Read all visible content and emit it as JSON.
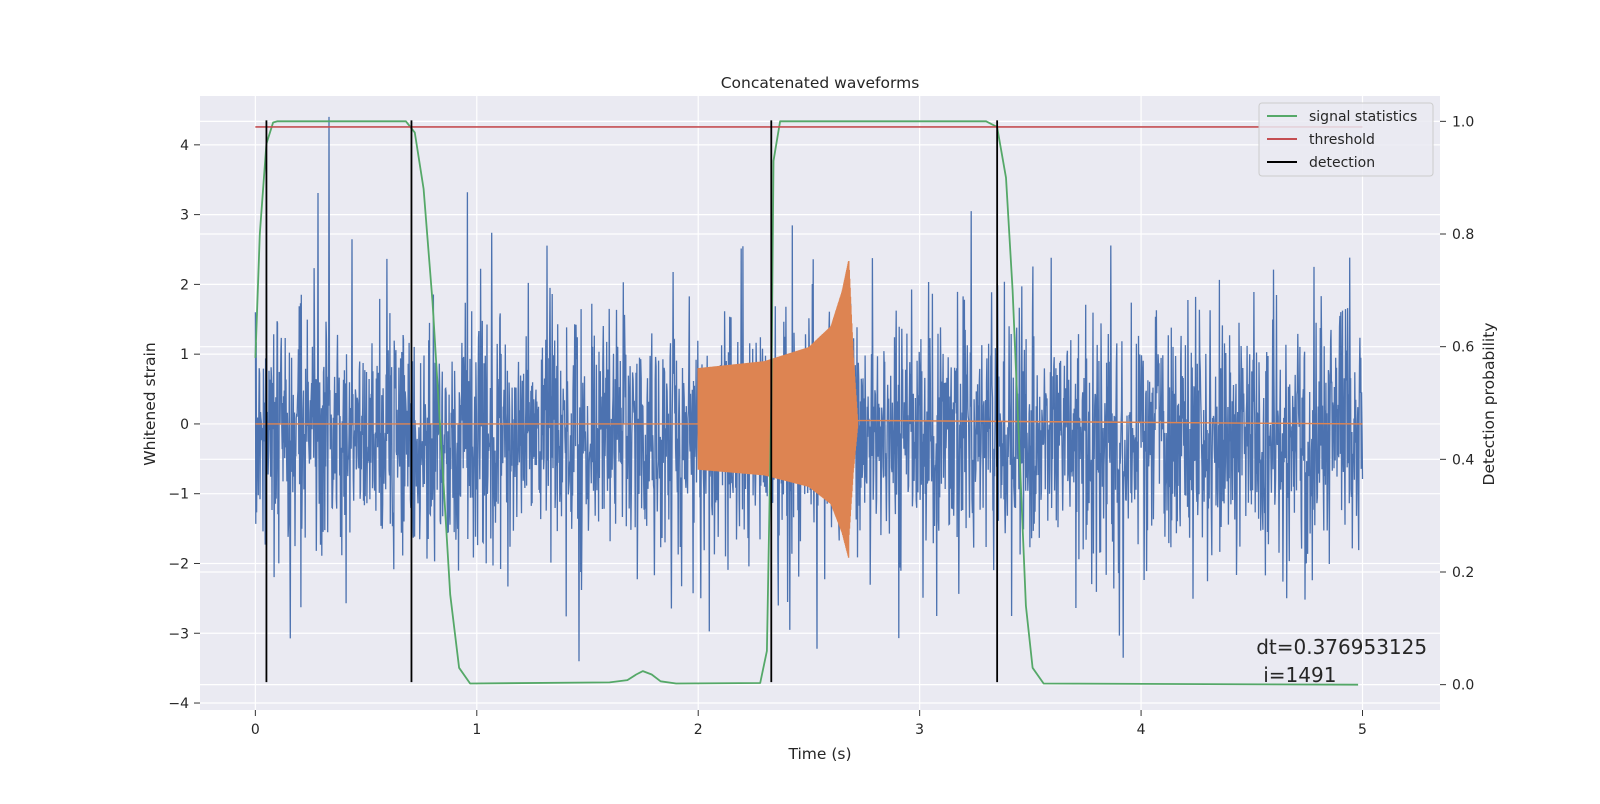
{
  "chart_data": {
    "type": "line",
    "title": "Concatenated waveforms",
    "xlabel": "Time (s)",
    "ylabel": "Whitened strain",
    "y2label": "Detection probability",
    "xlim": [
      -0.25,
      5.35
    ],
    "ylim": [
      -4.1,
      4.7
    ],
    "y2lim": [
      -0.045,
      1.045
    ],
    "x_ticks": [
      0,
      1,
      2,
      3,
      4,
      5
    ],
    "y_ticks": [
      -4,
      -3,
      -2,
      -1,
      0,
      1,
      2,
      3,
      4
    ],
    "y2_ticks": [
      0.0,
      0.2,
      0.4,
      0.6,
      0.8,
      1.0
    ],
    "x_tick_labels": [
      "0",
      "1",
      "2",
      "3",
      "4",
      "5"
    ],
    "y_tick_labels": [
      "−4",
      "−3",
      "−2",
      "−1",
      "0",
      "1",
      "2",
      "3",
      "4"
    ],
    "y2_tick_labels": [
      "0.0",
      "0.2",
      "0.4",
      "0.6",
      "0.8",
      "1.0"
    ],
    "grid": true,
    "legend_position": "upper right",
    "legend": [
      "signal statistics",
      "threshold",
      "detection"
    ],
    "colors": {
      "whitened_strain": "#4c72b0",
      "injected_waveform": "#dd8452",
      "signal_statistics": "#55a868",
      "threshold": "#c44e52",
      "detection": "#000000",
      "plot_background": "#eaeaf2",
      "grid": "#ffffff"
    },
    "whitened_strain": {
      "x_range": [
        0,
        5
      ],
      "y_range": [
        -3.7,
        4.4
      ]
    },
    "injected_waveform": {
      "x_start": 2.0,
      "x_merger": 2.68,
      "x_ringdown_end": 2.72,
      "x_end": 5.0,
      "envelope_points": [
        [
          2.0,
          0.8
        ],
        [
          2.3,
          0.9
        ],
        [
          2.5,
          1.1
        ],
        [
          2.6,
          1.4
        ],
        [
          2.65,
          1.9
        ],
        [
          2.68,
          2.35
        ],
        [
          2.7,
          1.0
        ],
        [
          2.72,
          0.05
        ]
      ]
    },
    "signal_statistics": {
      "axis": "right",
      "points": [
        [
          0.0,
          0.58
        ],
        [
          0.02,
          0.8
        ],
        [
          0.05,
          0.96
        ],
        [
          0.08,
          0.998
        ],
        [
          0.1,
          1.0
        ],
        [
          0.68,
          1.0
        ],
        [
          0.72,
          0.98
        ],
        [
          0.76,
          0.88
        ],
        [
          0.8,
          0.68
        ],
        [
          0.84,
          0.42
        ],
        [
          0.88,
          0.16
        ],
        [
          0.92,
          0.03
        ],
        [
          0.97,
          0.002
        ],
        [
          1.6,
          0.004
        ],
        [
          1.68,
          0.008
        ],
        [
          1.72,
          0.018
        ],
        [
          1.75,
          0.024
        ],
        [
          1.79,
          0.018
        ],
        [
          1.83,
          0.006
        ],
        [
          1.9,
          0.002
        ],
        [
          2.28,
          0.003
        ],
        [
          2.31,
          0.06
        ],
        [
          2.33,
          0.5
        ],
        [
          2.34,
          0.93
        ],
        [
          2.37,
          1.0
        ],
        [
          3.3,
          1.0
        ],
        [
          3.35,
          0.99
        ],
        [
          3.39,
          0.9
        ],
        [
          3.42,
          0.7
        ],
        [
          3.45,
          0.42
        ],
        [
          3.48,
          0.14
        ],
        [
          3.51,
          0.03
        ],
        [
          3.56,
          0.002
        ],
        [
          4.98,
          0.0
        ]
      ]
    },
    "threshold": {
      "axis": "right",
      "value": 0.99,
      "x_range": [
        0.0,
        5.0
      ]
    },
    "detection_lines": {
      "x": [
        0.05,
        0.705,
        2.33,
        3.35
      ],
      "y_range": [
        -3.7,
        4.35
      ]
    },
    "annotation": {
      "line1": "dt=0.376953125",
      "line2": "i=1491",
      "x": 4.52,
      "y": -3.3
    }
  }
}
